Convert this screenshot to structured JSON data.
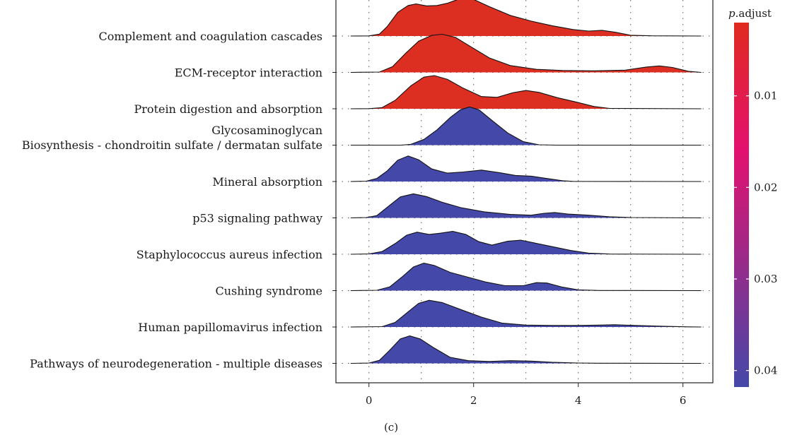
{
  "chart_data": {
    "type": "ridgeline",
    "panel_label": "(c)",
    "x_ticks": [
      "0",
      "2",
      "4",
      "6"
    ],
    "xlim": [
      -0.55,
      6.4
    ],
    "x_grid": true,
    "legend": {
      "title_italic": "p",
      "title_rest": ".adjust",
      "placement": "right",
      "range": [
        0.002,
        0.0418
      ],
      "colors": {
        "low": "#e02a1e",
        "mid": "#e3116f",
        "high": "#4448a8"
      },
      "ticks": [
        {
          "value": 0.01,
          "label": "0.01"
        },
        {
          "value": 0.02,
          "label": "0.02"
        },
        {
          "value": 0.03,
          "label": "0.03"
        },
        {
          "value": 0.04,
          "label": "0.04"
        }
      ]
    },
    "series": [
      {
        "name": "Complement and coagulation cascades",
        "p_adjust": 0.003,
        "color": "#dc2f22",
        "density": [
          [
            -0.35,
            0
          ],
          [
            0,
            0.004
          ],
          [
            0.2,
            0.05
          ],
          [
            0.35,
            0.25
          ],
          [
            0.55,
            0.62
          ],
          [
            0.75,
            0.8
          ],
          [
            0.9,
            0.84
          ],
          [
            1.1,
            0.79
          ],
          [
            1.3,
            0.8
          ],
          [
            1.5,
            0.86
          ],
          [
            1.7,
            0.96
          ],
          [
            1.85,
            1.0
          ],
          [
            2.0,
            0.96
          ],
          [
            2.3,
            0.77
          ],
          [
            2.7,
            0.54
          ],
          [
            3.1,
            0.39
          ],
          [
            3.5,
            0.27
          ],
          [
            3.9,
            0.17
          ],
          [
            4.2,
            0.13
          ],
          [
            4.45,
            0.15
          ],
          [
            4.7,
            0.1
          ],
          [
            5.0,
            0.02
          ],
          [
            5.4,
            0.006
          ],
          [
            6.35,
            0
          ]
        ]
      },
      {
        "name": "ECM-receptor interaction",
        "p_adjust": 0.003,
        "color": "#dc2f22",
        "density": [
          [
            -0.35,
            0
          ],
          [
            0.2,
            0.01
          ],
          [
            0.45,
            0.15
          ],
          [
            0.7,
            0.5
          ],
          [
            0.95,
            0.82
          ],
          [
            1.2,
            0.97
          ],
          [
            1.4,
            1.0
          ],
          [
            1.65,
            0.92
          ],
          [
            1.95,
            0.67
          ],
          [
            2.3,
            0.38
          ],
          [
            2.7,
            0.18
          ],
          [
            3.2,
            0.08
          ],
          [
            3.7,
            0.05
          ],
          [
            4.3,
            0.04
          ],
          [
            4.9,
            0.06
          ],
          [
            5.3,
            0.14
          ],
          [
            5.55,
            0.17
          ],
          [
            5.8,
            0.13
          ],
          [
            6.1,
            0.03
          ],
          [
            6.35,
            0
          ]
        ]
      },
      {
        "name": "Protein digestion and absorption",
        "p_adjust": 0.003,
        "color": "#dc2f22",
        "density": [
          [
            -0.35,
            0
          ],
          [
            0,
            0.003
          ],
          [
            0.25,
            0.03
          ],
          [
            0.5,
            0.22
          ],
          [
            0.8,
            0.6
          ],
          [
            1.05,
            0.83
          ],
          [
            1.25,
            0.87
          ],
          [
            1.5,
            0.77
          ],
          [
            1.8,
            0.54
          ],
          [
            2.15,
            0.32
          ],
          [
            2.45,
            0.3
          ],
          [
            2.75,
            0.42
          ],
          [
            3.0,
            0.48
          ],
          [
            3.25,
            0.43
          ],
          [
            3.6,
            0.29
          ],
          [
            3.95,
            0.18
          ],
          [
            4.3,
            0.06
          ],
          [
            4.6,
            0.01
          ],
          [
            6.35,
            0
          ]
        ]
      },
      {
        "name": "Glycosaminoglycan\nBiosynthesis - chondroitin sulfate / dermatan sulfate",
        "p_adjust": 0.0418,
        "color": "#4448a8",
        "density": [
          [
            -0.35,
            0
          ],
          [
            0.6,
            0
          ],
          [
            0.8,
            0.02
          ],
          [
            1.05,
            0.15
          ],
          [
            1.3,
            0.4
          ],
          [
            1.55,
            0.72
          ],
          [
            1.75,
            0.93
          ],
          [
            1.92,
            1.0
          ],
          [
            2.1,
            0.93
          ],
          [
            2.35,
            0.65
          ],
          [
            2.65,
            0.32
          ],
          [
            2.95,
            0.09
          ],
          [
            3.25,
            0.01
          ],
          [
            3.6,
            0
          ],
          [
            6.35,
            0
          ]
        ]
      },
      {
        "name": "Mineral absorption",
        "p_adjust": 0.0418,
        "color": "#4448a8",
        "density": [
          [
            -0.35,
            0
          ],
          [
            -0.05,
            0.01
          ],
          [
            0.15,
            0.08
          ],
          [
            0.35,
            0.28
          ],
          [
            0.55,
            0.56
          ],
          [
            0.75,
            0.67
          ],
          [
            0.95,
            0.57
          ],
          [
            1.2,
            0.33
          ],
          [
            1.5,
            0.22
          ],
          [
            1.8,
            0.25
          ],
          [
            2.15,
            0.3
          ],
          [
            2.5,
            0.23
          ],
          [
            2.8,
            0.16
          ],
          [
            3.1,
            0.14
          ],
          [
            3.4,
            0.08
          ],
          [
            3.7,
            0.02
          ],
          [
            3.9,
            0.003
          ],
          [
            6.35,
            0
          ]
        ]
      },
      {
        "name": "p53 signaling pathway",
        "p_adjust": 0.0418,
        "color": "#4448a8",
        "density": [
          [
            -0.35,
            0
          ],
          [
            -0.05,
            0.01
          ],
          [
            0.15,
            0.06
          ],
          [
            0.35,
            0.28
          ],
          [
            0.6,
            0.55
          ],
          [
            0.85,
            0.63
          ],
          [
            1.1,
            0.56
          ],
          [
            1.4,
            0.41
          ],
          [
            1.75,
            0.27
          ],
          [
            2.2,
            0.16
          ],
          [
            2.7,
            0.09
          ],
          [
            3.1,
            0.07
          ],
          [
            3.35,
            0.12
          ],
          [
            3.55,
            0.14
          ],
          [
            3.8,
            0.1
          ],
          [
            4.2,
            0.07
          ],
          [
            4.6,
            0.03
          ],
          [
            5.0,
            0.01
          ],
          [
            6.35,
            0
          ]
        ]
      },
      {
        "name": "Staphylococcus aureus infection",
        "p_adjust": 0.0418,
        "color": "#4448a8",
        "density": [
          [
            -0.35,
            0
          ],
          [
            0,
            0.01
          ],
          [
            0.25,
            0.07
          ],
          [
            0.5,
            0.28
          ],
          [
            0.72,
            0.5
          ],
          [
            0.92,
            0.58
          ],
          [
            1.15,
            0.52
          ],
          [
            1.35,
            0.55
          ],
          [
            1.6,
            0.6
          ],
          [
            1.85,
            0.52
          ],
          [
            2.1,
            0.33
          ],
          [
            2.35,
            0.24
          ],
          [
            2.65,
            0.34
          ],
          [
            2.9,
            0.37
          ],
          [
            3.15,
            0.3
          ],
          [
            3.5,
            0.2
          ],
          [
            3.85,
            0.1
          ],
          [
            4.2,
            0.03
          ],
          [
            4.6,
            0.005
          ],
          [
            6.35,
            0
          ]
        ]
      },
      {
        "name": "Cushing syndrome",
        "p_adjust": 0.0418,
        "color": "#4448a8",
        "density": [
          [
            -0.35,
            0
          ],
          [
            0.15,
            0.01
          ],
          [
            0.4,
            0.1
          ],
          [
            0.65,
            0.38
          ],
          [
            0.85,
            0.62
          ],
          [
            1.05,
            0.72
          ],
          [
            1.25,
            0.66
          ],
          [
            1.55,
            0.48
          ],
          [
            1.9,
            0.35
          ],
          [
            2.25,
            0.22
          ],
          [
            2.6,
            0.13
          ],
          [
            2.95,
            0.13
          ],
          [
            3.2,
            0.21
          ],
          [
            3.4,
            0.2
          ],
          [
            3.7,
            0.09
          ],
          [
            4.0,
            0.02
          ],
          [
            4.4,
            0.003
          ],
          [
            6.35,
            0
          ]
        ]
      },
      {
        "name": "Human papillomavirus infection",
        "p_adjust": 0.0418,
        "color": "#4448a8",
        "density": [
          [
            -0.35,
            0
          ],
          [
            0.25,
            0.01
          ],
          [
            0.5,
            0.12
          ],
          [
            0.75,
            0.4
          ],
          [
            0.95,
            0.62
          ],
          [
            1.15,
            0.7
          ],
          [
            1.4,
            0.64
          ],
          [
            1.75,
            0.46
          ],
          [
            2.15,
            0.26
          ],
          [
            2.55,
            0.1
          ],
          [
            3.0,
            0.05
          ],
          [
            3.5,
            0.04
          ],
          [
            4.0,
            0.04
          ],
          [
            4.4,
            0.05
          ],
          [
            4.7,
            0.06
          ],
          [
            5.1,
            0.04
          ],
          [
            5.6,
            0.02
          ],
          [
            6.1,
            0.004
          ],
          [
            6.35,
            0
          ]
        ]
      },
      {
        "name": "Pathways of neurodegeneration - multiple diseases",
        "p_adjust": 0.0418,
        "color": "#4448a8",
        "density": [
          [
            -0.35,
            0
          ],
          [
            0,
            0.01
          ],
          [
            0.2,
            0.08
          ],
          [
            0.4,
            0.35
          ],
          [
            0.6,
            0.64
          ],
          [
            0.78,
            0.72
          ],
          [
            0.98,
            0.64
          ],
          [
            1.25,
            0.4
          ],
          [
            1.55,
            0.16
          ],
          [
            1.9,
            0.07
          ],
          [
            2.3,
            0.05
          ],
          [
            2.7,
            0.07
          ],
          [
            3.1,
            0.06
          ],
          [
            3.5,
            0.03
          ],
          [
            4.0,
            0.01
          ],
          [
            4.4,
            0.004
          ],
          [
            6.35,
            0
          ]
        ]
      }
    ]
  }
}
